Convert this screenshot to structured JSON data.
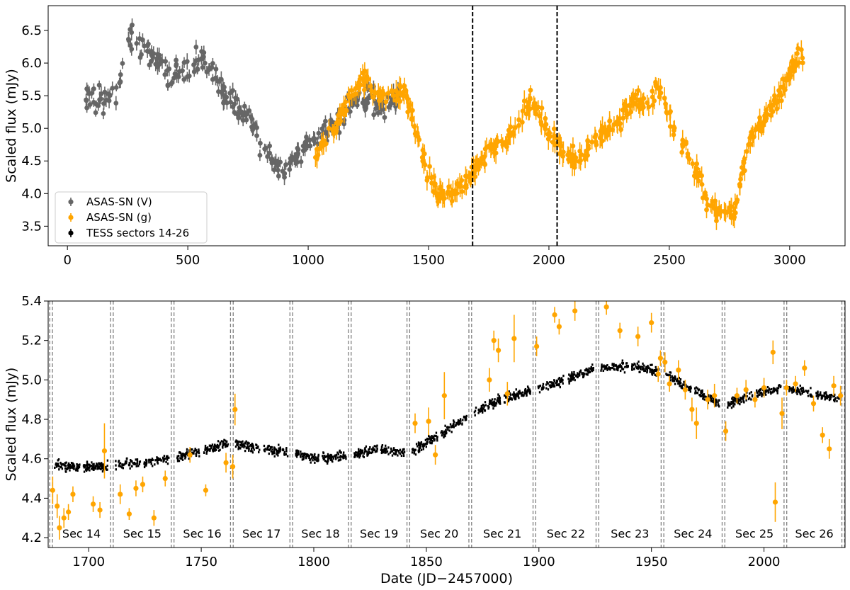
{
  "chart_data": [
    {
      "type": "scatter",
      "panel": "top",
      "xlabel": "",
      "ylabel": "Scaled flux (mJy)",
      "xlim": [
        -80,
        3230
      ],
      "ylim": [
        3.2,
        6.88
      ],
      "xticks": [
        0,
        500,
        1000,
        1500,
        2000,
        2500,
        3000
      ],
      "yticks": [
        3.5,
        4.0,
        4.5,
        5.0,
        5.5,
        6.0,
        6.5
      ],
      "xtick_labels": [
        "0",
        "500",
        "1000",
        "1500",
        "2000",
        "2500",
        "3000"
      ],
      "ytick_labels": [
        "3.5",
        "4.0",
        "4.5",
        "5.0",
        "5.5",
        "6.0",
        "6.5"
      ],
      "vlines": [
        1683,
        2034
      ],
      "legend": {
        "placement": "lower-left",
        "entries": [
          {
            "label": "ASAS-SN (V)",
            "color": "#666666"
          },
          {
            "label": "ASAS-SN (g)",
            "color": "#FFA500"
          },
          {
            "label": "TESS sectors 14-26",
            "color": "#000000"
          }
        ]
      },
      "series": [
        {
          "name": "ASAS-SN (V)",
          "color": "#666666",
          "anchors": [
            [
              75,
              5.55
            ],
            [
              110,
              5.4
            ],
            [
              140,
              5.45
            ],
            [
              170,
              5.55
            ],
            [
              200,
              5.6
            ],
            [
              225,
              5.85
            ],
            [
              250,
              6.25
            ],
            [
              265,
              6.4
            ],
            [
              275,
              6.3
            ],
            [
              400,
              6.0
            ],
            [
              430,
              5.8
            ],
            [
              470,
              5.75
            ],
            [
              510,
              5.9
            ],
            [
              550,
              6.05
            ],
            [
              590,
              5.95
            ],
            [
              620,
              5.7
            ],
            [
              645,
              5.55
            ],
            [
              760,
              5.1
            ],
            [
              800,
              4.75
            ],
            [
              850,
              4.55
            ],
            [
              900,
              4.4
            ],
            [
              950,
              4.5
            ],
            [
              990,
              4.75
            ],
            [
              1010,
              4.9
            ],
            [
              1120,
              5.1
            ],
            [
              1160,
              5.3
            ],
            [
              1220,
              5.5
            ],
            [
              1270,
              5.45
            ],
            [
              1320,
              5.3
            ],
            [
              1360,
              5.4
            ],
            [
              1385,
              5.6
            ]
          ],
          "noise": 0.18,
          "err": 0.09,
          "count": 300
        },
        {
          "name": "ASAS-SN (g)",
          "color": "#FFA500",
          "anchors": [
            [
              1030,
              4.55
            ],
            [
              1100,
              4.9
            ],
            [
              1150,
              5.3
            ],
            [
              1200,
              5.6
            ],
            [
              1240,
              5.75
            ],
            [
              1280,
              5.55
            ],
            [
              1320,
              5.45
            ],
            [
              1360,
              5.5
            ],
            [
              1400,
              5.55
            ],
            [
              1490,
              4.4
            ],
            [
              1540,
              3.95
            ],
            [
              1580,
              4.0
            ],
            [
              1620,
              4.05
            ],
            [
              1650,
              4.15
            ],
            [
              1683,
              4.35
            ],
            [
              1720,
              4.5
            ],
            [
              1760,
              4.7
            ],
            [
              1850,
              4.9
            ],
            [
              1900,
              5.3
            ],
            [
              1930,
              5.45
            ],
            [
              1960,
              5.2
            ],
            [
              2000,
              4.95
            ],
            [
              2034,
              4.8
            ],
            [
              2060,
              4.6
            ],
            [
              2100,
              4.55
            ],
            [
              2140,
              4.55
            ],
            [
              2190,
              4.85
            ],
            [
              2240,
              4.95
            ],
            [
              2300,
              5.15
            ],
            [
              2360,
              5.45
            ],
            [
              2400,
              5.35
            ],
            [
              2450,
              5.6
            ],
            [
              2490,
              5.3
            ],
            [
              2540,
              4.85
            ],
            [
              2580,
              4.6
            ],
            [
              2620,
              4.3
            ],
            [
              2660,
              3.8
            ],
            [
              2700,
              3.75
            ],
            [
              2740,
              3.8
            ],
            [
              2770,
              3.7
            ],
            [
              2800,
              4.3
            ],
            [
              2840,
              4.9
            ],
            [
              2880,
              5.05
            ],
            [
              2930,
              5.35
            ],
            [
              2980,
              5.65
            ],
            [
              3020,
              6.0
            ],
            [
              3060,
              6.15
            ]
          ],
          "noise": 0.12,
          "err": 0.12,
          "count": 520
        }
      ]
    },
    {
      "type": "scatter",
      "panel": "bottom",
      "xlabel": "Date (JD−2457000)",
      "ylabel": "Scaled flux (mJy)",
      "xlim": [
        1682,
        2036
      ],
      "ylim": [
        4.15,
        5.4
      ],
      "xticks": [
        1700,
        1750,
        1800,
        1850,
        1900,
        1950,
        2000
      ],
      "yticks": [
        4.2,
        4.4,
        4.6,
        4.8,
        5.0,
        5.2,
        5.4
      ],
      "xtick_labels": [
        "1700",
        "1750",
        "1800",
        "1850",
        "1900",
        "1950",
        "2000"
      ],
      "ytick_labels": [
        "4.2",
        "4.4",
        "4.6",
        "4.8",
        "5.0",
        "5.2",
        "5.4"
      ],
      "sector_boundaries": [
        1683.3,
        1710.3,
        1737.3,
        1763.6,
        1790.0,
        1816.0,
        1842.0,
        1869.5,
        1898.0,
        1926.0,
        1954.9,
        1982.0,
        2009.5,
        2035.2
      ],
      "sectors": [
        "Sec 14",
        "Sec 15",
        "Sec 16",
        "Sec 17",
        "Sec 18",
        "Sec 19",
        "Sec 20",
        "Sec 21",
        "Sec 22",
        "Sec 23",
        "Sec 24",
        "Sec 25",
        "Sec 26"
      ],
      "series": [
        {
          "name": "TESS sectors 14-26",
          "color": "#000000",
          "anchors": [
            [
              1683,
              4.58
            ],
            [
              1697,
              4.55
            ],
            [
              1710,
              4.57
            ],
            [
              1724,
              4.58
            ],
            [
              1737,
              4.6
            ],
            [
              1750,
              4.64
            ],
            [
              1763,
              4.68
            ],
            [
              1777,
              4.65
            ],
            [
              1790,
              4.63
            ],
            [
              1803,
              4.6
            ],
            [
              1816,
              4.62
            ],
            [
              1829,
              4.65
            ],
            [
              1842,
              4.63
            ],
            [
              1856,
              4.72
            ],
            [
              1869,
              4.82
            ],
            [
              1883,
              4.9
            ],
            [
              1898,
              4.95
            ],
            [
              1912,
              5.0
            ],
            [
              1926,
              5.06
            ],
            [
              1940,
              5.07
            ],
            [
              1955,
              5.04
            ],
            [
              1968,
              4.95
            ],
            [
              1982,
              4.87
            ],
            [
              1996,
              4.93
            ],
            [
              2009,
              4.96
            ],
            [
              2022,
              4.93
            ],
            [
              2035,
              4.9
            ]
          ],
          "noise": 0.02,
          "count": 2200
        },
        {
          "name": "ASAS-SN (g)",
          "color": "#FFA500",
          "points": [
            [
              1684,
              4.44,
              0.07
            ],
            [
              1686,
              4.36,
              0.06
            ],
            [
              1687,
              4.25,
              0.06
            ],
            [
              1689,
              4.3,
              0.05
            ],
            [
              1691,
              4.33,
              0.04
            ],
            [
              1693,
              4.42,
              0.04
            ],
            [
              1702,
              4.37,
              0.04
            ],
            [
              1705,
              4.34,
              0.04
            ],
            [
              1707,
              4.64,
              0.14
            ],
            [
              1714,
              4.42,
              0.05
            ],
            [
              1718,
              4.32,
              0.03
            ],
            [
              1721,
              4.45,
              0.04
            ],
            [
              1724,
              4.47,
              0.04
            ],
            [
              1729,
              4.3,
              0.04
            ],
            [
              1734,
              4.5,
              0.04
            ],
            [
              1745,
              4.62,
              0.04
            ],
            [
              1752,
              4.44,
              0.03
            ],
            [
              1761,
              4.58,
              0.05
            ],
            [
              1764,
              4.56,
              0.06
            ],
            [
              1765,
              4.85,
              0.08
            ],
            [
              1845,
              4.78,
              0.05
            ],
            [
              1851,
              4.79,
              0.07
            ],
            [
              1854,
              4.62,
              0.05
            ],
            [
              1858,
              4.92,
              0.12
            ],
            [
              1878,
              5.0,
              0.06
            ],
            [
              1880,
              5.2,
              0.05
            ],
            [
              1882,
              5.15,
              0.06
            ],
            [
              1886,
              4.93,
              0.06
            ],
            [
              1889,
              5.21,
              0.12
            ],
            [
              1899,
              5.17,
              0.05
            ],
            [
              1907,
              5.33,
              0.04
            ],
            [
              1909,
              5.27,
              0.04
            ],
            [
              1916,
              5.35,
              0.05
            ],
            [
              1930,
              5.37,
              0.04
            ],
            [
              1936,
              5.25,
              0.04
            ],
            [
              1944,
              5.22,
              0.05
            ],
            [
              1950,
              5.29,
              0.05
            ],
            [
              1953,
              5.03,
              0.04
            ],
            [
              1954,
              5.11,
              0.04
            ],
            [
              1956,
              5.09,
              0.05
            ],
            [
              1958,
              4.98,
              0.04
            ],
            [
              1962,
              5.05,
              0.05
            ],
            [
              1965,
              4.95,
              0.05
            ],
            [
              1968,
              4.85,
              0.06
            ],
            [
              1970,
              4.78,
              0.08
            ],
            [
              1975,
              4.9,
              0.05
            ],
            [
              1978,
              4.92,
              0.06
            ],
            [
              1983,
              4.74,
              0.05
            ],
            [
              1988,
              4.92,
              0.04
            ],
            [
              1992,
              4.95,
              0.05
            ],
            [
              1996,
              4.9,
              0.04
            ],
            [
              2000,
              4.96,
              0.05
            ],
            [
              2004,
              5.14,
              0.06
            ],
            [
              2005,
              4.38,
              0.1
            ],
            [
              2008,
              4.83,
              0.08
            ],
            [
              2010,
              4.96,
              0.04
            ],
            [
              2014,
              4.98,
              0.04
            ],
            [
              2018,
              5.06,
              0.04
            ],
            [
              2022,
              4.88,
              0.04
            ],
            [
              2026,
              4.72,
              0.04
            ],
            [
              2029,
              4.65,
              0.05
            ],
            [
              2031,
              4.97,
              0.05
            ],
            [
              2034,
              4.92,
              0.05
            ]
          ]
        }
      ]
    }
  ]
}
